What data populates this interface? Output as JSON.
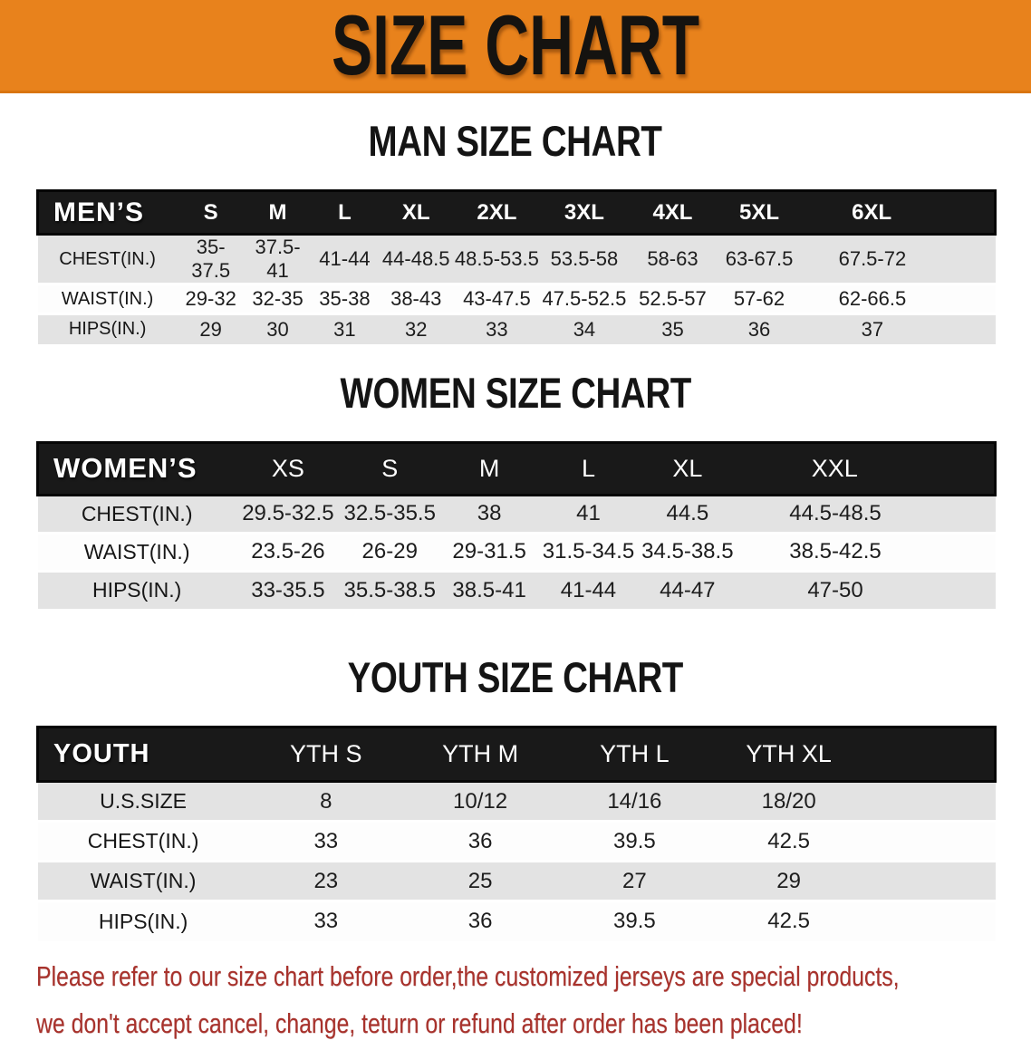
{
  "banner": {
    "title": "SIZE CHART"
  },
  "sections": {
    "men": {
      "heading": "MAN SIZE CHART",
      "table": {
        "corner": "MEN’S",
        "sizes": [
          "S",
          "M",
          "L",
          "XL",
          "2XL",
          "3XL",
          "4XL",
          "5XL",
          "6XL"
        ],
        "rows": [
          {
            "label": "CHEST(IN.)",
            "values": [
              "35-37.5",
              "37.5-41",
              "41-44",
              "44-48.5",
              "48.5-53.5",
              "53.5-58",
              "58-63",
              "63-67.5",
              "67.5-72"
            ]
          },
          {
            "label": "WAIST(IN.)",
            "values": [
              "29-32",
              "32-35",
              "35-38",
              "38-43",
              "43-47.5",
              "47.5-52.5",
              "52.5-57",
              "57-62",
              "62-66.5"
            ]
          },
          {
            "label": "HIPS(IN.)",
            "values": [
              "29",
              "30",
              "31",
              "32",
              "33",
              "34",
              "35",
              "36",
              "37"
            ]
          }
        ]
      }
    },
    "women": {
      "heading": "WOMEN SIZE CHART",
      "table": {
        "corner": "WOMEN’S",
        "sizes": [
          "XS",
          "S",
          "M",
          "L",
          "XL",
          "XXL"
        ],
        "rows": [
          {
            "label": "CHEST(IN.)",
            "values": [
              "29.5-32.5",
              "32.5-35.5",
              "38",
              "41",
              "44.5",
              "44.5-48.5"
            ]
          },
          {
            "label": "WAIST(IN.)",
            "values": [
              "23.5-26",
              "26-29",
              "29-31.5",
              "31.5-34.5",
              "34.5-38.5",
              "38.5-42.5"
            ]
          },
          {
            "label": "HIPS(IN.)",
            "values": [
              "33-35.5",
              "35.5-38.5",
              "38.5-41",
              "41-44",
              "44-47",
              "47-50"
            ]
          }
        ]
      }
    },
    "youth": {
      "heading": "YOUTH SIZE CHART",
      "table": {
        "corner": "YOUTH",
        "sizes": [
          "YTH S",
          "YTH M",
          "YTH L",
          "YTH XL"
        ],
        "trailing_blank": true,
        "rows": [
          {
            "label": "U.S.SIZE",
            "values": [
              "8",
              "10/12",
              "14/16",
              "18/20"
            ]
          },
          {
            "label": "CHEST(IN.)",
            "values": [
              "33",
              "36",
              "39.5",
              "42.5"
            ]
          },
          {
            "label": "WAIST(IN.)",
            "values": [
              "23",
              "25",
              "27",
              "29"
            ]
          },
          {
            "label": "HIPS(IN.)",
            "values": [
              "33",
              "36",
              "39.5",
              "42.5"
            ]
          }
        ]
      }
    }
  },
  "footer": {
    "line1": "Please refer to our size chart before order,the customized jerseys are special products,",
    "line2": "we don't accept cancel, change, teturn or refund after order has been placed!"
  },
  "colors": {
    "banner_bg": "#E8821C",
    "header_bar": "#191919",
    "row_shaded": "#E3E3E3",
    "row_plain": "#FDFDFD",
    "disclaimer_red": "#A8322C"
  }
}
